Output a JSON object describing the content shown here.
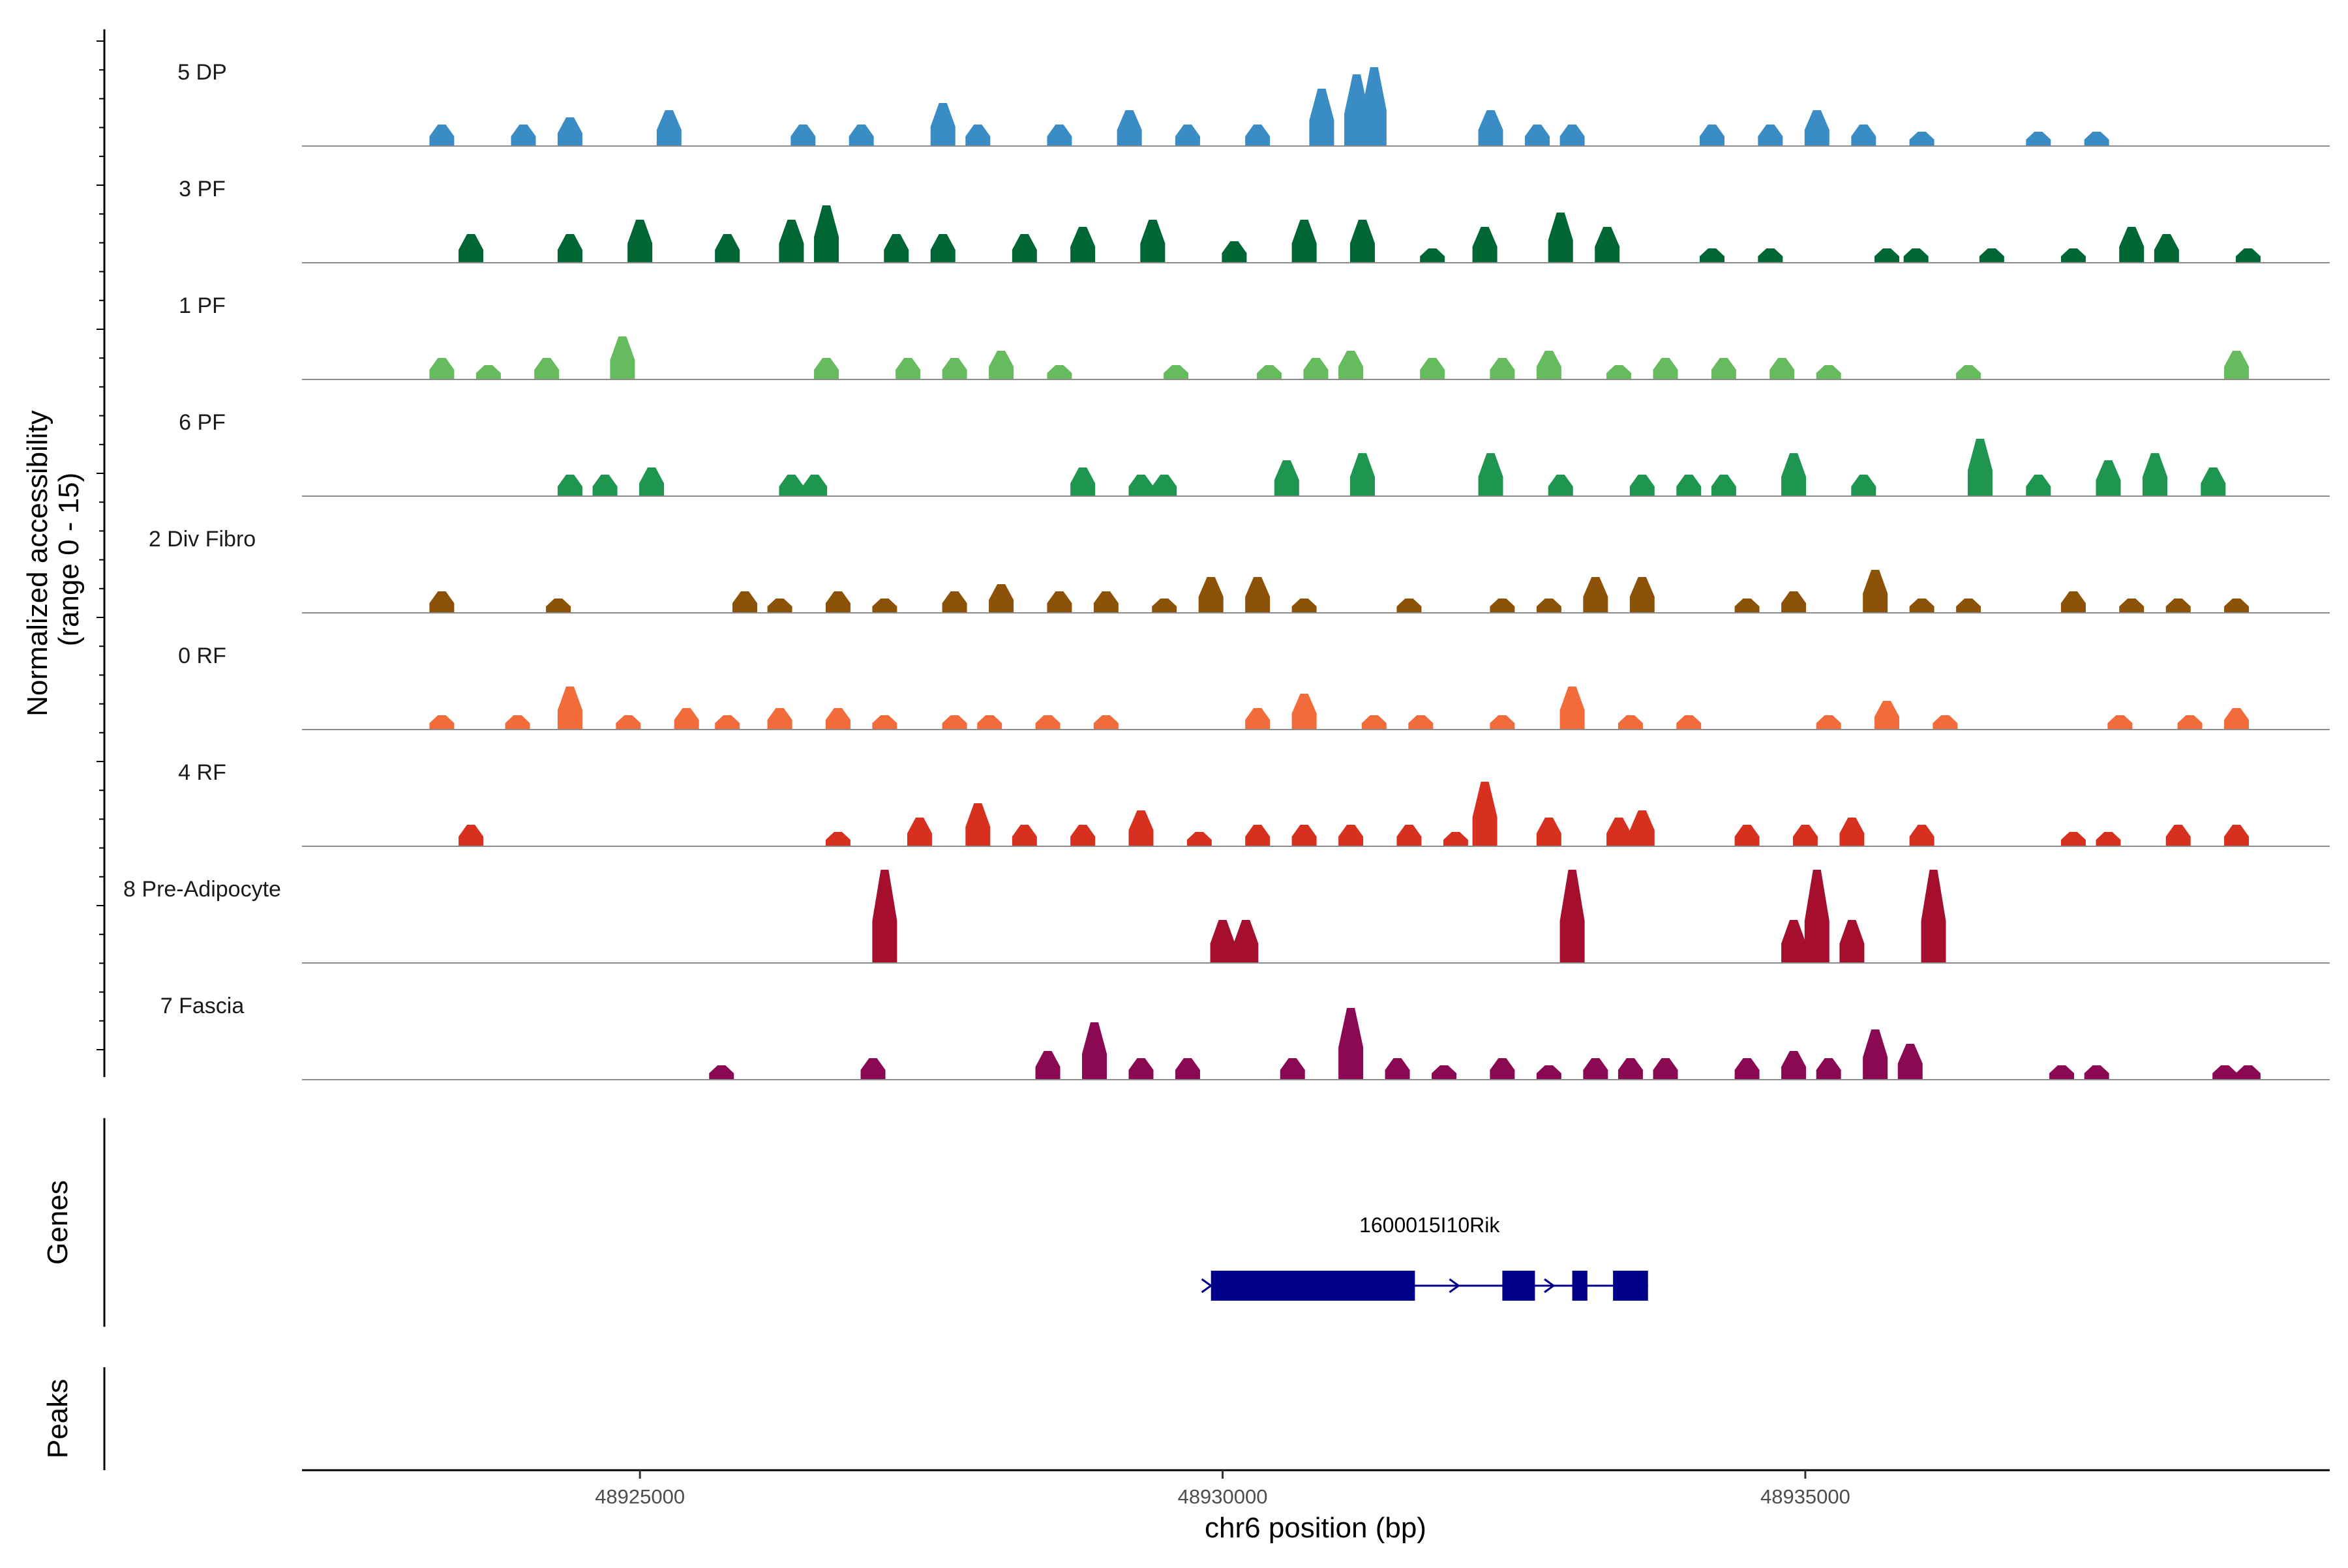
{
  "chart_data": {
    "type": "area",
    "title": "",
    "chromosome": "chr6",
    "xlabel": "chr6 position (bp)",
    "ylabel": "Normalized accessibility\n(range 0 - 15)",
    "ylim": [
      0,
      15
    ],
    "xlim": [
      48922100,
      48939500
    ],
    "x_ticks": [
      48925000,
      48930000,
      48935000
    ],
    "x_tick_labels": [
      "48925000",
      "48930000",
      "48935000"
    ],
    "panel_labels": {
      "genes": "Genes",
      "peaks": "Peaks"
    },
    "tracks": [
      {
        "name": "5 DP",
        "color": "#3A8CC4",
        "peaks": [
          [
            48923300,
            3
          ],
          [
            48924000,
            3
          ],
          [
            48924400,
            4
          ],
          [
            48925250,
            5
          ],
          [
            48926400,
            3
          ],
          [
            48926900,
            3
          ],
          [
            48927600,
            6
          ],
          [
            48927900,
            3
          ],
          [
            48928600,
            3
          ],
          [
            48929200,
            5
          ],
          [
            48929700,
            3
          ],
          [
            48930300,
            3
          ],
          [
            48930850,
            8
          ],
          [
            48931150,
            10
          ],
          [
            48931300,
            11
          ],
          [
            48932300,
            5
          ],
          [
            48932700,
            3
          ],
          [
            48933000,
            3
          ],
          [
            48934200,
            3
          ],
          [
            48934700,
            3
          ],
          [
            48935100,
            5
          ],
          [
            48935500,
            3
          ],
          [
            48936000,
            2
          ],
          [
            48937000,
            2
          ],
          [
            48937500,
            2
          ]
        ]
      },
      {
        "name": "3 PF",
        "color": "#006633",
        "peaks": [
          [
            48923550,
            4
          ],
          [
            48924400,
            4
          ],
          [
            48925000,
            6
          ],
          [
            48925750,
            4
          ],
          [
            48926300,
            6
          ],
          [
            48926600,
            8
          ],
          [
            48927200,
            4
          ],
          [
            48927600,
            4
          ],
          [
            48928300,
            4
          ],
          [
            48928800,
            5
          ],
          [
            48929400,
            6
          ],
          [
            48930100,
            3
          ],
          [
            48930700,
            6
          ],
          [
            48931200,
            6
          ],
          [
            48931800,
            2
          ],
          [
            48932250,
            5
          ],
          [
            48932900,
            7
          ],
          [
            48933300,
            5
          ],
          [
            48934200,
            2
          ],
          [
            48934700,
            2
          ],
          [
            48935700,
            2
          ],
          [
            48935950,
            2
          ],
          [
            48936600,
            2
          ],
          [
            48937300,
            2
          ],
          [
            48937800,
            5
          ],
          [
            48938100,
            4
          ],
          [
            48938800,
            2
          ]
        ]
      },
      {
        "name": "1 PF",
        "color": "#66BB5E",
        "peaks": [
          [
            48923300,
            3
          ],
          [
            48923700,
            2
          ],
          [
            48924200,
            3
          ],
          [
            48924850,
            6
          ],
          [
            48926600,
            3
          ],
          [
            48927300,
            3
          ],
          [
            48927700,
            3
          ],
          [
            48928100,
            4
          ],
          [
            48928600,
            2
          ],
          [
            48929600,
            2
          ],
          [
            48930400,
            2
          ],
          [
            48930800,
            3
          ],
          [
            48931100,
            4
          ],
          [
            48931800,
            3
          ],
          [
            48932400,
            3
          ],
          [
            48932800,
            4
          ],
          [
            48933400,
            2
          ],
          [
            48933800,
            3
          ],
          [
            48934300,
            3
          ],
          [
            48934800,
            3
          ],
          [
            48935200,
            2
          ],
          [
            48936400,
            2
          ],
          [
            48938700,
            4
          ]
        ]
      },
      {
        "name": "6 PF",
        "color": "#1F9650",
        "peaks": [
          [
            48924400,
            3
          ],
          [
            48924700,
            3
          ],
          [
            48925100,
            4
          ],
          [
            48926300,
            3
          ],
          [
            48926500,
            3
          ],
          [
            48928800,
            4
          ],
          [
            48929300,
            3
          ],
          [
            48929500,
            3
          ],
          [
            48930550,
            5
          ],
          [
            48931200,
            6
          ],
          [
            48932300,
            6
          ],
          [
            48932900,
            3
          ],
          [
            48933600,
            3
          ],
          [
            48934000,
            3
          ],
          [
            48934300,
            3
          ],
          [
            48934900,
            6
          ],
          [
            48935500,
            3
          ],
          [
            48936500,
            8
          ],
          [
            48937000,
            3
          ],
          [
            48937600,
            5
          ],
          [
            48938000,
            6
          ],
          [
            48938500,
            4
          ]
        ]
      },
      {
        "name": "2 Div Fibro",
        "color": "#8C5208",
        "peaks": [
          [
            48923300,
            3
          ],
          [
            48924300,
            2
          ],
          [
            48925900,
            3
          ],
          [
            48926200,
            2
          ],
          [
            48926700,
            3
          ],
          [
            48927100,
            2
          ],
          [
            48927700,
            3
          ],
          [
            48928100,
            4
          ],
          [
            48928600,
            3
          ],
          [
            48929000,
            3
          ],
          [
            48929500,
            2
          ],
          [
            48929900,
            5
          ],
          [
            48930300,
            5
          ],
          [
            48930700,
            2
          ],
          [
            48931600,
            2
          ],
          [
            48932400,
            2
          ],
          [
            48932800,
            2
          ],
          [
            48933200,
            5
          ],
          [
            48933600,
            5
          ],
          [
            48934500,
            2
          ],
          [
            48934900,
            3
          ],
          [
            48935600,
            6
          ],
          [
            48936000,
            2
          ],
          [
            48936400,
            2
          ],
          [
            48937300,
            3
          ],
          [
            48937800,
            2
          ],
          [
            48938200,
            2
          ],
          [
            48938700,
            2
          ]
        ]
      },
      {
        "name": "0 RF",
        "color": "#F26B3A",
        "peaks": [
          [
            48923300,
            2
          ],
          [
            48923950,
            2
          ],
          [
            48924400,
            6
          ],
          [
            48924900,
            2
          ],
          [
            48925400,
            3
          ],
          [
            48925750,
            2
          ],
          [
            48926200,
            3
          ],
          [
            48926700,
            3
          ],
          [
            48927100,
            2
          ],
          [
            48927700,
            2
          ],
          [
            48928000,
            2
          ],
          [
            48928500,
            2
          ],
          [
            48929000,
            2
          ],
          [
            48930300,
            3
          ],
          [
            48930700,
            5
          ],
          [
            48931300,
            2
          ],
          [
            48931700,
            2
          ],
          [
            48932400,
            2
          ],
          [
            48933000,
            6
          ],
          [
            48933500,
            2
          ],
          [
            48934000,
            2
          ],
          [
            48935200,
            2
          ],
          [
            48935700,
            4
          ],
          [
            48936200,
            2
          ],
          [
            48937700,
            2
          ],
          [
            48938300,
            2
          ],
          [
            48938700,
            3
          ]
        ]
      },
      {
        "name": "4 RF",
        "color": "#D7301F",
        "peaks": [
          [
            48923550,
            3
          ],
          [
            48926700,
            2
          ],
          [
            48927400,
            4
          ],
          [
            48927900,
            6
          ],
          [
            48928300,
            3
          ],
          [
            48928800,
            3
          ],
          [
            48929300,
            5
          ],
          [
            48929800,
            2
          ],
          [
            48930300,
            3
          ],
          [
            48930700,
            3
          ],
          [
            48931100,
            3
          ],
          [
            48931600,
            3
          ],
          [
            48932000,
            2
          ],
          [
            48932250,
            9
          ],
          [
            48932800,
            4
          ],
          [
            48933400,
            4
          ],
          [
            48933600,
            5
          ],
          [
            48934500,
            3
          ],
          [
            48935000,
            3
          ],
          [
            48935400,
            4
          ],
          [
            48936000,
            3
          ],
          [
            48937300,
            2
          ],
          [
            48937600,
            2
          ],
          [
            48938200,
            3
          ],
          [
            48938700,
            3
          ]
        ]
      },
      {
        "name": "8 Pre-Adipocyte",
        "color": "#A50F2D",
        "peaks": [
          [
            48927100,
            13
          ],
          [
            48930000,
            6
          ],
          [
            48930200,
            6
          ],
          [
            48933000,
            13
          ],
          [
            48934900,
            6
          ],
          [
            48935100,
            13
          ],
          [
            48935400,
            6
          ],
          [
            48936100,
            13
          ]
        ]
      },
      {
        "name": "7 Fascia",
        "color": "#8B0952",
        "peaks": [
          [
            48925700,
            2
          ],
          [
            48927000,
            3
          ],
          [
            48928500,
            4
          ],
          [
            48928900,
            8
          ],
          [
            48929300,
            3
          ],
          [
            48929700,
            3
          ],
          [
            48930600,
            3
          ],
          [
            48931100,
            10
          ],
          [
            48931500,
            3
          ],
          [
            48931900,
            2
          ],
          [
            48932400,
            3
          ],
          [
            48932800,
            2
          ],
          [
            48933200,
            3
          ],
          [
            48933500,
            3
          ],
          [
            48933800,
            3
          ],
          [
            48934500,
            3
          ],
          [
            48934900,
            4
          ],
          [
            48935200,
            3
          ],
          [
            48935600,
            7
          ],
          [
            48935900,
            5
          ],
          [
            48937200,
            2
          ],
          [
            48937500,
            2
          ],
          [
            48938600,
            2
          ],
          [
            48938800,
            2
          ]
        ]
      }
    ],
    "gene": {
      "name": "1600015I10Rik",
      "strand": "+",
      "start": 48929900,
      "end": 48933650,
      "exons": [
        [
          48929900,
          48931650
        ],
        [
          48932400,
          48932680
        ],
        [
          48933000,
          48933130
        ],
        [
          48933350,
          48933650
        ]
      ],
      "color": "#00008B"
    }
  }
}
